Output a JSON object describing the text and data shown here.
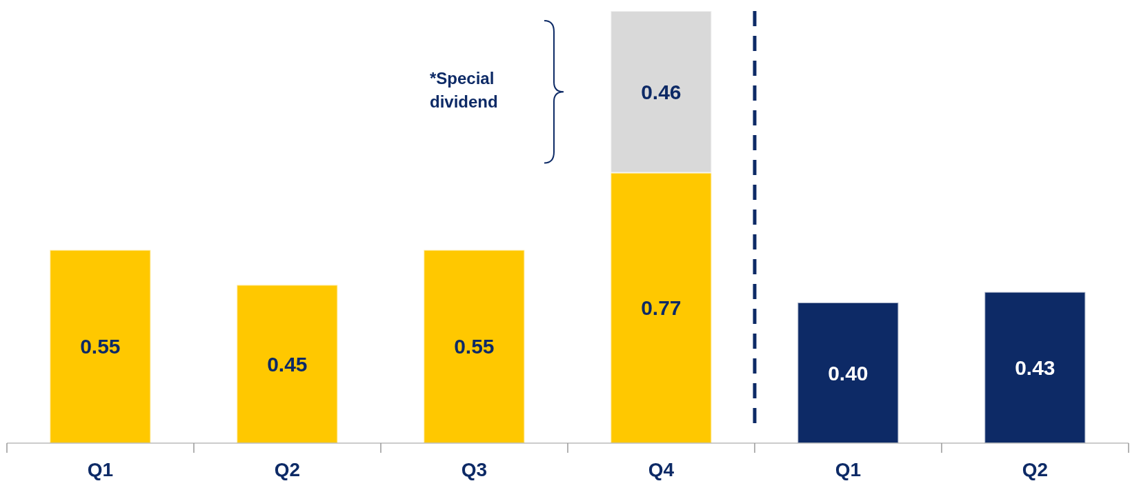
{
  "chart_data": {
    "type": "bar",
    "categories": [
      "Q1",
      "Q2",
      "Q3",
      "Q4",
      "Q1",
      "Q2"
    ],
    "stacked": true,
    "tick_labels": "x",
    "grid": false,
    "legend": false,
    "series": [
      {
        "color": "#ffc800",
        "values": [
          0.55,
          0.45,
          0.55,
          0.77,
          null,
          null
        ],
        "value_labels": [
          "0.55",
          "0.45",
          "0.55",
          "0.77",
          null,
          null
        ]
      },
      {
        "color": "#d9d9d9",
        "values": [
          null,
          null,
          null,
          0.46,
          null,
          null
        ],
        "value_labels": [
          null,
          null,
          null,
          "0.46",
          null,
          null
        ]
      },
      {
        "color": "#0d2a66",
        "values": [
          null,
          null,
          null,
          null,
          0.4,
          0.43
        ],
        "value_labels": [
          null,
          null,
          null,
          null,
          "0.40",
          "0.43"
        ]
      }
    ],
    "annotations": [
      "*Special dividend"
    ]
  }
}
